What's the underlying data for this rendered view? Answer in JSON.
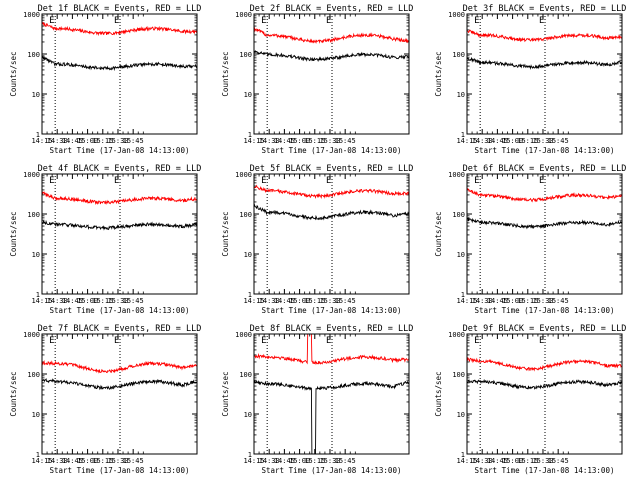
{
  "chart_data": [
    {
      "type": "line",
      "title": "Det 1f BLACK = Events, RED = LLD",
      "ylabel": "Counts/sec",
      "xlabel": "Start Time (17-Jan-08 14:13:00)",
      "yscale": "log",
      "ylim": [
        1,
        1000
      ],
      "xlim_min": [
        2,
        155
      ],
      "yticks": [
        "1",
        "10",
        "100",
        "1000"
      ],
      "xticks": [
        {
          "label": "14:15",
          "min": 2
        },
        {
          "label": "14:30",
          "min": 17
        },
        {
          "label": "14:45",
          "min": 32
        },
        {
          "label": "15:00",
          "min": 47
        },
        {
          "label": "15:15",
          "min": 62
        },
        {
          "label": "15:30",
          "min": 77
        },
        {
          "label": "15:45",
          "min": 92
        }
      ],
      "markers": [
        {
          "label": "E",
          "min": 15
        },
        {
          "label": "E",
          "min": 79
        }
      ],
      "series": [
        {
          "name": "LLD",
          "color": "#ff0000",
          "base": 380,
          "amp": 0.14,
          "start": 540,
          "end": 420
        },
        {
          "name": "Events",
          "color": "#000000",
          "base": 50,
          "amp": 0.12,
          "start": 80,
          "end": 55
        }
      ]
    },
    {
      "type": "line",
      "title": "Det 2f BLACK = Events, RED = LLD",
      "ylabel": "Counts/sec",
      "xlabel": "Start Time (17-Jan-08 14:13:00)",
      "yscale": "log",
      "ylim": [
        1,
        1000
      ],
      "xlim_min": [
        2,
        155
      ],
      "yticks": [
        "1",
        "10",
        "100",
        "1000"
      ],
      "xticks": [
        {
          "label": "14:15",
          "min": 2
        },
        {
          "label": "14:30",
          "min": 17
        },
        {
          "label": "14:45",
          "min": 32
        },
        {
          "label": "15:00",
          "min": 47
        },
        {
          "label": "15:15",
          "min": 62
        },
        {
          "label": "15:30",
          "min": 77
        },
        {
          "label": "15:45",
          "min": 92
        }
      ],
      "markers": [
        {
          "label": "E",
          "min": 15
        },
        {
          "label": "E",
          "min": 79
        }
      ],
      "series": [
        {
          "name": "LLD",
          "color": "#ff0000",
          "base": 250,
          "amp": 0.18,
          "start": 400,
          "end": 260
        },
        {
          "name": "Events",
          "color": "#000000",
          "base": 85,
          "amp": 0.14,
          "start": 110,
          "end": 100
        }
      ]
    },
    {
      "type": "line",
      "title": "Det 3f BLACK = Events, RED = LLD",
      "ylabel": "Counts/sec",
      "xlabel": "Start Time (17-Jan-08 14:13:00)",
      "yscale": "log",
      "ylim": [
        1,
        1000
      ],
      "xlim_min": [
        2,
        155
      ],
      "yticks": [
        "1",
        "10",
        "100",
        "1000"
      ],
      "xticks": [
        {
          "label": "14:15",
          "min": 2
        },
        {
          "label": "14:30",
          "min": 17
        },
        {
          "label": "14:45",
          "min": 32
        },
        {
          "label": "15:00",
          "min": 47
        },
        {
          "label": "15:15",
          "min": 62
        },
        {
          "label": "15:30",
          "min": 77
        },
        {
          "label": "15:45",
          "min": 92
        }
      ],
      "markers": [
        {
          "label": "E",
          "min": 15
        },
        {
          "label": "E",
          "min": 79
        }
      ],
      "series": [
        {
          "name": "LLD",
          "color": "#ff0000",
          "base": 260,
          "amp": 0.14,
          "start": 360,
          "end": 300
        },
        {
          "name": "Events",
          "color": "#000000",
          "base": 55,
          "amp": 0.12,
          "start": 75,
          "end": 70
        }
      ]
    },
    {
      "type": "line",
      "title": "Det 4f BLACK = Events, RED = LLD",
      "ylabel": "Counts/sec",
      "xlabel": "Start Time (17-Jan-08 14:13:00)",
      "yscale": "log",
      "ylim": [
        1,
        1000
      ],
      "xlim_min": [
        2,
        155
      ],
      "yticks": [
        "1",
        "10",
        "100",
        "1000"
      ],
      "xticks": [
        {
          "label": "14:15",
          "min": 2
        },
        {
          "label": "14:30",
          "min": 17
        },
        {
          "label": "14:45",
          "min": 32
        },
        {
          "label": "15:00",
          "min": 47
        },
        {
          "label": "15:15",
          "min": 62
        },
        {
          "label": "15:30",
          "min": 77
        },
        {
          "label": "15:45",
          "min": 92
        }
      ],
      "markers": [
        {
          "label": "E",
          "min": 15
        },
        {
          "label": "E",
          "min": 79
        }
      ],
      "series": [
        {
          "name": "LLD",
          "color": "#ff0000",
          "base": 220,
          "amp": 0.12,
          "start": 320,
          "end": 270
        },
        {
          "name": "Events",
          "color": "#000000",
          "base": 50,
          "amp": 0.1,
          "start": 60,
          "end": 60
        }
      ]
    },
    {
      "type": "line",
      "title": "Det 5f BLACK = Events, RED = LLD",
      "ylabel": "Counts/sec",
      "xlabel": "Start Time (17-Jan-08 14:13:00)",
      "yscale": "log",
      "ylim": [
        1,
        1000
      ],
      "xlim_min": [
        2,
        155
      ],
      "yticks": [
        "1",
        "10",
        "100",
        "1000"
      ],
      "xticks": [
        {
          "label": "14:15",
          "min": 2
        },
        {
          "label": "14:30",
          "min": 17
        },
        {
          "label": "14:45",
          "min": 32
        },
        {
          "label": "15:00",
          "min": 47
        },
        {
          "label": "15:15",
          "min": 62
        },
        {
          "label": "15:30",
          "min": 77
        },
        {
          "label": "15:45",
          "min": 92
        }
      ],
      "markers": [
        {
          "label": "E",
          "min": 15
        },
        {
          "label": "E",
          "min": 79
        }
      ],
      "series": [
        {
          "name": "LLD",
          "color": "#ff0000",
          "base": 330,
          "amp": 0.15,
          "start": 460,
          "end": 380
        },
        {
          "name": "Events",
          "color": "#000000",
          "base": 95,
          "amp": 0.16,
          "start": 150,
          "end": 120
        }
      ]
    },
    {
      "type": "line",
      "title": "Det 6f BLACK = Events, RED = LLD",
      "ylabel": "Counts/sec",
      "xlabel": "Start Time (17-Jan-08 14:13:00)",
      "yscale": "log",
      "ylim": [
        1,
        1000
      ],
      "xlim_min": [
        2,
        155
      ],
      "yticks": [
        "1",
        "10",
        "100",
        "1000"
      ],
      "xticks": [
        {
          "label": "14:15",
          "min": 2
        },
        {
          "label": "14:30",
          "min": 17
        },
        {
          "label": "14:45",
          "min": 32
        },
        {
          "label": "15:00",
          "min": 47
        },
        {
          "label": "15:15",
          "min": 62
        },
        {
          "label": "15:30",
          "min": 77
        },
        {
          "label": "15:45",
          "min": 92
        }
      ],
      "markers": [
        {
          "label": "E",
          "min": 15
        },
        {
          "label": "E",
          "min": 79
        }
      ],
      "series": [
        {
          "name": "LLD",
          "color": "#ff0000",
          "base": 260,
          "amp": 0.14,
          "start": 380,
          "end": 330
        },
        {
          "name": "Events",
          "color": "#000000",
          "base": 55,
          "amp": 0.12,
          "start": 70,
          "end": 70
        }
      ]
    },
    {
      "type": "line",
      "title": "Det 7f BLACK = Events, RED = LLD",
      "ylabel": "Counts/sec",
      "xlabel": "Start Time (17-Jan-08 14:13:00)",
      "yscale": "log",
      "ylim": [
        1,
        1000
      ],
      "xlim_min": [
        2,
        155
      ],
      "yticks": [
        "1",
        "10",
        "100",
        "1000"
      ],
      "xticks": [
        {
          "label": "14:15",
          "min": 2
        },
        {
          "label": "14:30",
          "min": 17
        },
        {
          "label": "14:45",
          "min": 32
        },
        {
          "label": "15:00",
          "min": 47
        },
        {
          "label": "15:15",
          "min": 62
        },
        {
          "label": "15:30",
          "min": 77
        },
        {
          "label": "15:45",
          "min": 92
        }
      ],
      "markers": [
        {
          "label": "E",
          "min": 15
        },
        {
          "label": "E",
          "min": 79
        }
      ],
      "series": [
        {
          "name": "LLD",
          "color": "#ff0000",
          "base": 150,
          "amp": 0.22,
          "start": 170,
          "end": 200
        },
        {
          "name": "Events",
          "color": "#000000",
          "base": 55,
          "amp": 0.18,
          "start": 65,
          "end": 75
        }
      ]
    },
    {
      "type": "line",
      "title": "Det 8f BLACK = Events, RED = LLD",
      "ylabel": "Counts/sec",
      "xlabel": "Start Time (17-Jan-08 14:13:00)",
      "yscale": "log",
      "ylim": [
        1,
        1000
      ],
      "xlim_min": [
        2,
        155
      ],
      "yticks": [
        "1",
        "10",
        "100",
        "1000"
      ],
      "xticks": [
        {
          "label": "14:15",
          "min": 2
        },
        {
          "label": "14:30",
          "min": 17
        },
        {
          "label": "14:45",
          "min": 32
        },
        {
          "label": "15:00",
          "min": 47
        },
        {
          "label": "15:15",
          "min": 62
        },
        {
          "label": "15:30",
          "min": 77
        },
        {
          "label": "15:45",
          "min": 92
        }
      ],
      "markers": [
        {
          "label": "E",
          "min": 15
        },
        {
          "label": "E",
          "min": 79
        }
      ],
      "series": [
        {
          "name": "LLD",
          "color": "#ff0000",
          "base": 230,
          "amp": 0.16,
          "start": 260,
          "end": 270
        },
        {
          "name": "Events",
          "color": "#000000",
          "base": 50,
          "amp": 0.14,
          "start": 60,
          "end": 70
        }
      ],
      "spikes": [
        {
          "series": "LLD",
          "from_min": 55,
          "to_min": 59,
          "peak": 1000
        },
        {
          "series": "Events",
          "from_min": 59,
          "to_min": 63,
          "dip": 1
        }
      ]
    },
    {
      "type": "line",
      "title": "Det 9f BLACK = Events, RED = LLD",
      "ylabel": "Counts/sec",
      "xlabel": "Start Time (17-Jan-08 14:13:00)",
      "yscale": "log",
      "ylim": [
        1,
        1000
      ],
      "xlim_min": [
        2,
        155
      ],
      "yticks": [
        "1",
        "10",
        "100",
        "1000"
      ],
      "xticks": [
        {
          "label": "14:15",
          "min": 2
        },
        {
          "label": "14:30",
          "min": 17
        },
        {
          "label": "14:45",
          "min": 32
        },
        {
          "label": "15:00",
          "min": 47
        },
        {
          "label": "15:15",
          "min": 62
        },
        {
          "label": "15:30",
          "min": 77
        },
        {
          "label": "15:45",
          "min": 92
        }
      ],
      "markers": [
        {
          "label": "E",
          "min": 15
        },
        {
          "label": "E",
          "min": 79
        }
      ],
      "series": [
        {
          "name": "LLD",
          "color": "#ff0000",
          "base": 170,
          "amp": 0.22,
          "start": 210,
          "end": 200
        },
        {
          "name": "Events",
          "color": "#000000",
          "base": 55,
          "amp": 0.16,
          "start": 60,
          "end": 70
        }
      ]
    }
  ]
}
